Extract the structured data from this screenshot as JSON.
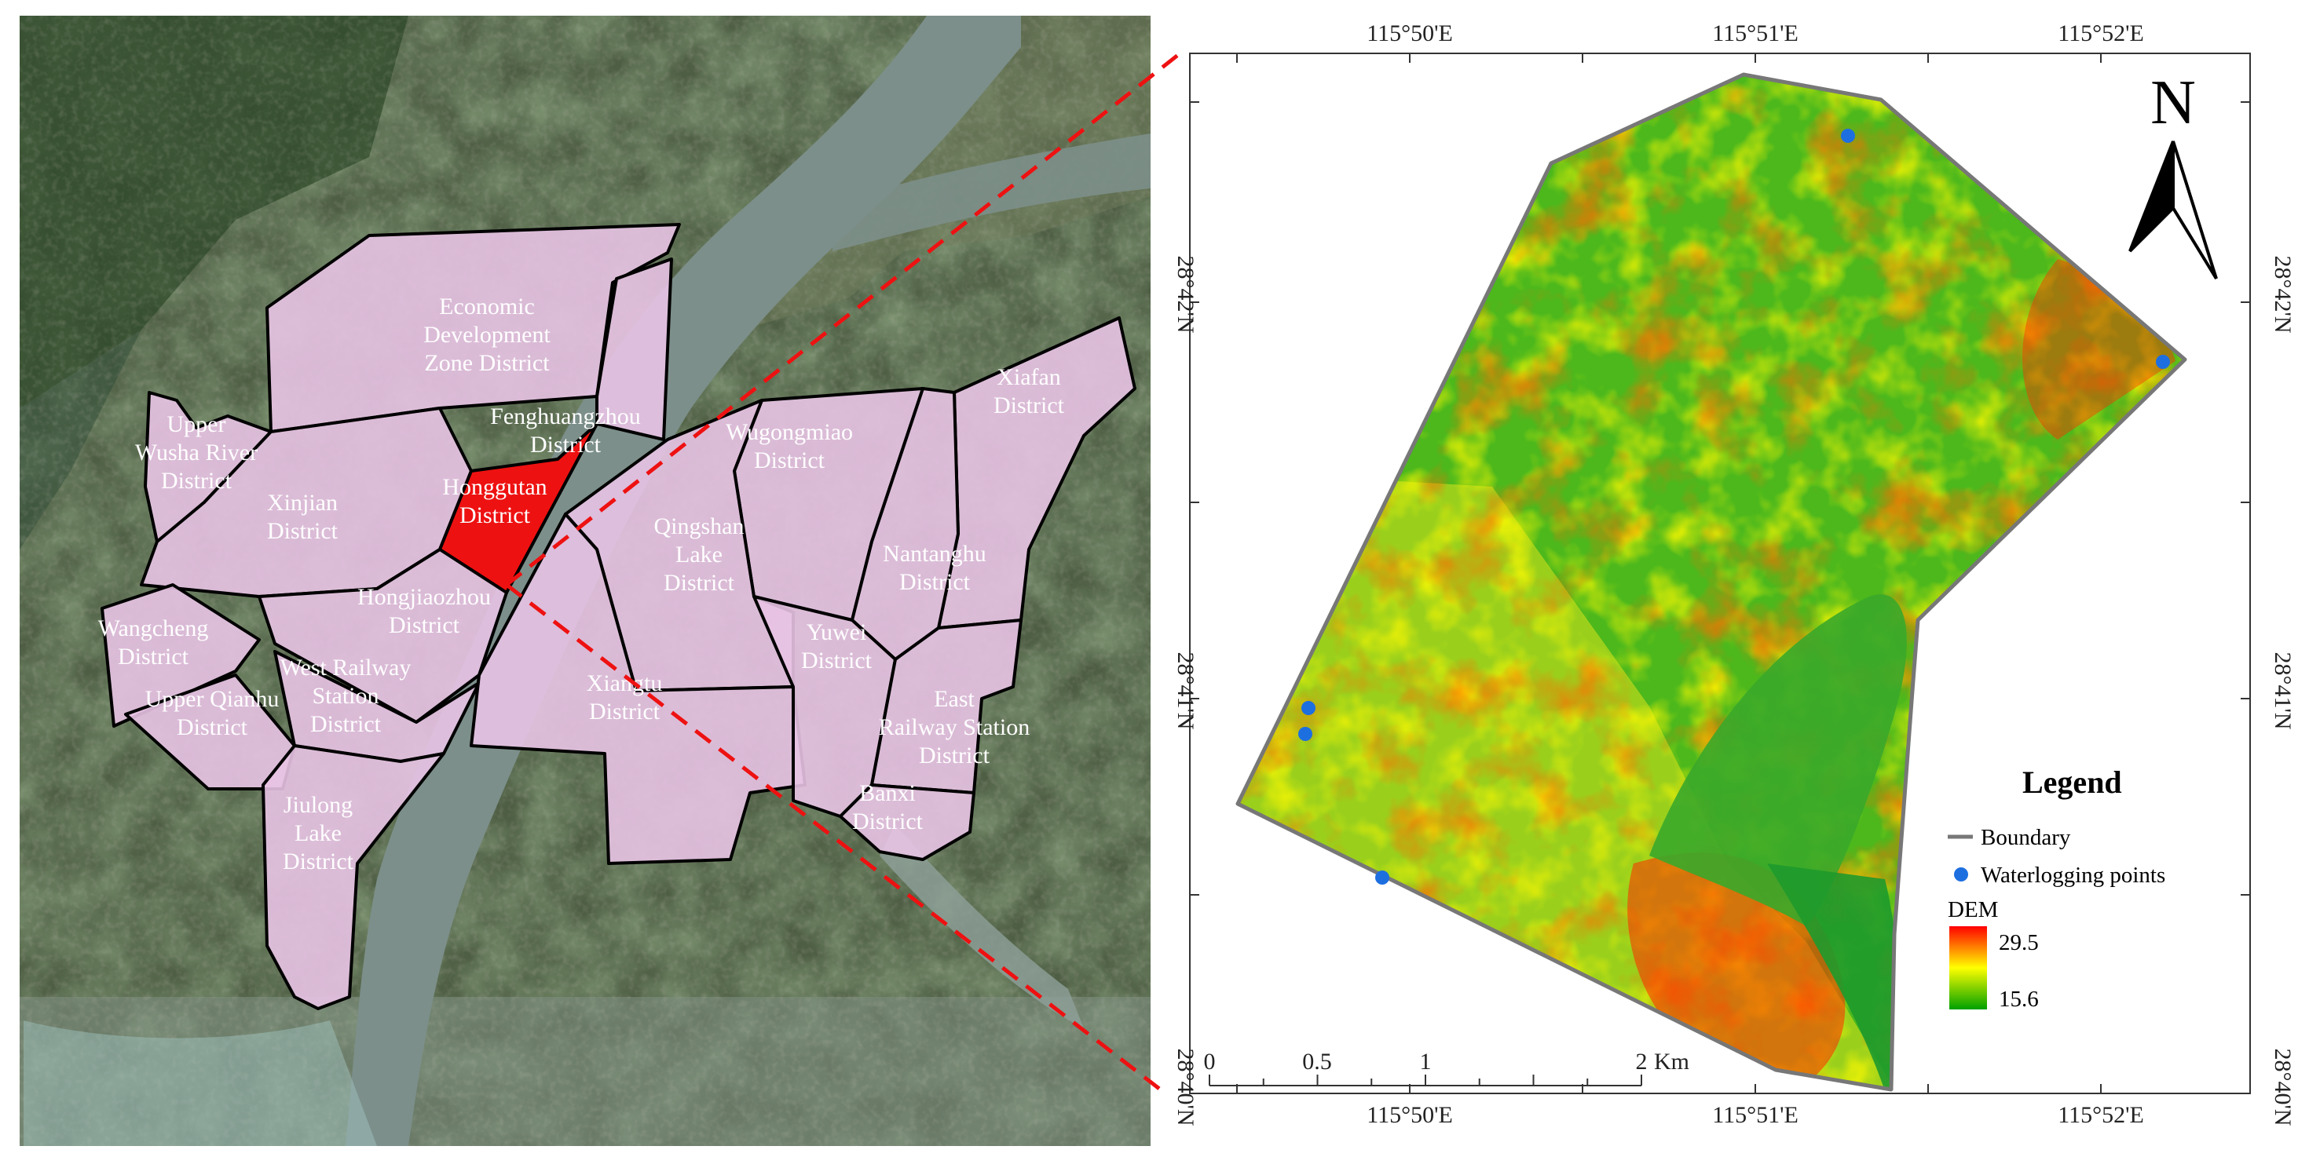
{
  "left_panel": {
    "districts": [
      {
        "name": "Economic Development Zone District",
        "lines": [
          "Economic",
          "Development",
          "Zone District"
        ],
        "highlight": false
      },
      {
        "name": "Fenghuangzhou District",
        "lines": [
          "Fenghuangzhou",
          "District"
        ],
        "highlight": false
      },
      {
        "name": "Upper Wusha River District",
        "lines": [
          "Upper",
          "Wusha River",
          "District"
        ],
        "highlight": false
      },
      {
        "name": "Xinjian District",
        "lines": [
          "Xinjian",
          "District"
        ],
        "highlight": false
      },
      {
        "name": "Honggutan District",
        "lines": [
          "Honggutan",
          "District"
        ],
        "highlight": true
      },
      {
        "name": "Wugongmiao District",
        "lines": [
          "Wugongmiao",
          "District"
        ],
        "highlight": false
      },
      {
        "name": "Xiafan District",
        "lines": [
          "Xiafan",
          "District"
        ],
        "highlight": false
      },
      {
        "name": "Qingshan Lake District",
        "lines": [
          "Qingshan",
          "Lake",
          "District"
        ],
        "highlight": false
      },
      {
        "name": "Nantanghu District",
        "lines": [
          "Nantanghu",
          "District"
        ],
        "highlight": false
      },
      {
        "name": "Hongjiaozhou District",
        "lines": [
          "Hongjiaozhou",
          "District"
        ],
        "highlight": false
      },
      {
        "name": "Wangcheng District",
        "lines": [
          "Wangcheng",
          "District"
        ],
        "highlight": false
      },
      {
        "name": "West Railway Station District",
        "lines": [
          "West Railway",
          "Station",
          "District"
        ],
        "highlight": false
      },
      {
        "name": "Upper Qianhu District",
        "lines": [
          "Upper Qianhu",
          "District"
        ],
        "highlight": false
      },
      {
        "name": "Xiangtu District",
        "lines": [
          "Xiangtu",
          "District"
        ],
        "highlight": false
      },
      {
        "name": "Yuwei District",
        "lines": [
          "Yuwei",
          "District"
        ],
        "highlight": false
      },
      {
        "name": "East Railway Station District",
        "lines": [
          "East",
          "Railway Station",
          "District"
        ],
        "highlight": false
      },
      {
        "name": "Banxi District",
        "lines": [
          "Banxi",
          "District"
        ],
        "highlight": false
      },
      {
        "name": "Jiulong Lake District",
        "lines": [
          "Jiulong",
          "Lake",
          "District"
        ],
        "highlight": false
      }
    ]
  },
  "right_panel": {
    "top_lon_labels": [
      "115°50'E",
      "115°51'E",
      "115°52'E"
    ],
    "bottom_lon_labels": [
      "115°50'E",
      "115°51'E",
      "115°52'E"
    ],
    "left_lat_labels": [
      "28°42'N",
      "28°41'N",
      "28°40'N"
    ],
    "right_lat_labels": [
      "28°42'N",
      "28°41'N",
      "28°40'N"
    ],
    "north_arrow": "N",
    "scale_bar": {
      "ticks": [
        "0",
        "0.5",
        "1",
        "2"
      ],
      "unit": "Km"
    },
    "legend": {
      "title": "Legend",
      "boundary_label": "Boundary",
      "points_label": "Waterlogging points",
      "dem_label": "DEM",
      "dem_max": "29.5",
      "dem_min": "15.6"
    }
  },
  "colors": {
    "highlight_district": "#ee1111",
    "district_fill": "#e8c3e4",
    "dem_high": "#ff0000",
    "dem_mid": "#ffff00",
    "dem_low": "#00a000",
    "waterlogging_point": "#1d6fe0",
    "boundary": "#777777"
  }
}
